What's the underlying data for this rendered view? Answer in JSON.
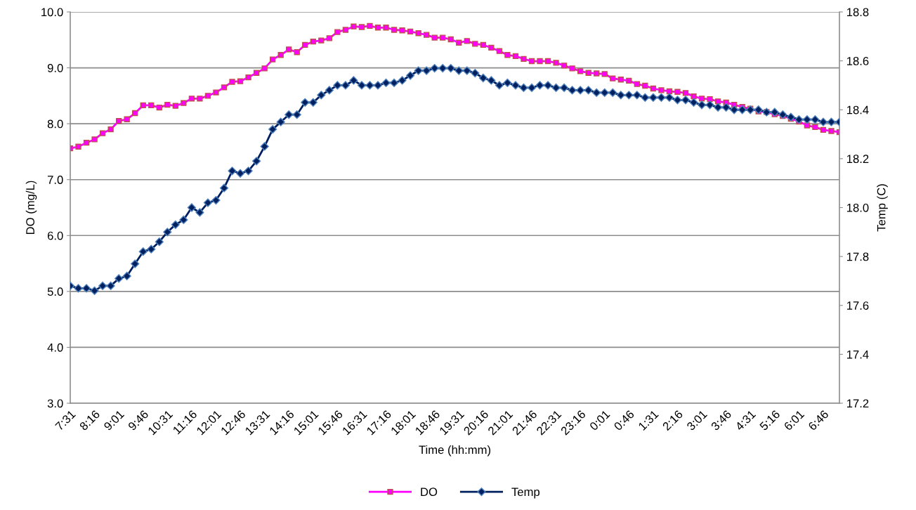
{
  "chart_data": {
    "type": "line",
    "xlabel": "Time (hh:mm)",
    "ylabel": "DO (mg/L)",
    "y2label": "Temp (C)",
    "categories": [
      "7:31",
      null,
      null,
      "8:16",
      null,
      null,
      "9:01",
      null,
      null,
      "9:46",
      null,
      null,
      "10:31",
      null,
      null,
      "11:16",
      null,
      null,
      "12:01",
      null,
      null,
      "12:46",
      null,
      null,
      "13:31",
      null,
      null,
      "14:16",
      null,
      null,
      "15:01",
      null,
      null,
      "15:46",
      null,
      null,
      "16:31",
      null,
      null,
      "17:16",
      null,
      null,
      "18:01",
      null,
      null,
      "18:46",
      null,
      null,
      "19:31",
      null,
      null,
      "20:16",
      null,
      null,
      "21:01",
      null,
      null,
      "21:46",
      null,
      null,
      "22:31",
      null,
      null,
      "23:16",
      null,
      null,
      "0:01",
      null,
      null,
      "0:46",
      null,
      null,
      "1:31",
      null,
      null,
      "2:16",
      null,
      null,
      "3:01",
      null,
      null,
      "3:46",
      null,
      null,
      "4:31",
      null,
      null,
      "5:16",
      null,
      null,
      "6:01",
      null,
      null,
      "6:46",
      null,
      null
    ],
    "series": [
      {
        "name": "DO",
        "color": "#ff00ff",
        "marker": "square",
        "values": [
          7.56,
          7.59,
          7.66,
          7.72,
          7.83,
          7.9,
          8.05,
          8.08,
          8.19,
          8.33,
          8.33,
          8.29,
          8.34,
          8.32,
          8.37,
          8.45,
          8.45,
          8.5,
          8.56,
          8.65,
          8.75,
          8.76,
          8.83,
          8.91,
          8.99,
          9.15,
          9.23,
          9.33,
          9.28,
          9.41,
          9.47,
          9.49,
          9.53,
          9.64,
          9.68,
          9.74,
          9.73,
          9.75,
          9.72,
          9.72,
          9.68,
          9.67,
          9.65,
          9.62,
          9.59,
          9.54,
          9.54,
          9.51,
          9.45,
          9.48,
          9.43,
          9.41,
          9.36,
          9.3,
          9.23,
          9.21,
          9.16,
          9.12,
          9.12,
          9.12,
          9.09,
          9.04,
          8.99,
          8.94,
          8.91,
          8.9,
          8.89,
          8.81,
          8.79,
          8.77,
          8.71,
          8.68,
          8.63,
          8.6,
          8.58,
          8.57,
          8.55,
          8.49,
          8.45,
          8.44,
          8.4,
          8.38,
          8.34,
          8.3,
          8.27,
          8.22,
          8.21,
          8.17,
          8.14,
          8.09,
          8.04,
          7.97,
          7.94,
          7.89,
          7.87,
          7.85
        ]
      },
      {
        "name": "Temp",
        "color": "#002060",
        "marker": "diamond",
        "axis": "y2",
        "values": [
          17.68,
          17.67,
          17.67,
          17.66,
          17.68,
          17.68,
          17.71,
          17.72,
          17.77,
          17.82,
          17.83,
          17.86,
          17.9,
          17.93,
          17.95,
          18.0,
          17.98,
          18.02,
          18.03,
          18.08,
          18.15,
          18.14,
          18.15,
          18.19,
          18.25,
          18.32,
          18.35,
          18.38,
          18.38,
          18.43,
          18.43,
          18.46,
          18.48,
          18.5,
          18.5,
          18.52,
          18.5,
          18.5,
          18.5,
          18.51,
          18.51,
          18.52,
          18.54,
          18.56,
          18.56,
          18.57,
          18.57,
          18.57,
          18.56,
          18.56,
          18.55,
          18.53,
          18.52,
          18.5,
          18.51,
          18.5,
          18.49,
          18.49,
          18.5,
          18.5,
          18.49,
          18.49,
          18.48,
          18.48,
          18.48,
          18.47,
          18.47,
          18.47,
          18.46,
          18.46,
          18.46,
          18.45,
          18.45,
          18.45,
          18.45,
          18.44,
          18.44,
          18.43,
          18.42,
          18.42,
          18.41,
          18.41,
          18.4,
          18.4,
          18.4,
          18.4,
          18.39,
          18.39,
          18.38,
          18.37,
          18.36,
          18.36,
          18.36,
          18.35,
          18.35,
          18.35
        ]
      }
    ],
    "ylim": [
      3,
      10
    ],
    "yticks": [
      {
        "value": 3,
        "label": "3.0"
      },
      {
        "value": 4,
        "label": "4.0"
      },
      {
        "value": 5,
        "label": "5.0"
      },
      {
        "value": 6,
        "label": "6.0"
      },
      {
        "value": 7,
        "label": "7.0"
      },
      {
        "value": 8,
        "label": "8.0"
      },
      {
        "value": 9,
        "label": "9.0"
      },
      {
        "value": 10,
        "label": "10.0"
      }
    ],
    "y2lim": [
      17.2,
      18.8
    ],
    "y2ticks": [
      {
        "value": 17.2,
        "label": "17.2"
      },
      {
        "value": 17.4,
        "label": "17.4"
      },
      {
        "value": 17.6,
        "label": "17.6"
      },
      {
        "value": 17.8,
        "label": "17.8"
      },
      {
        "value": 18.0,
        "label": "18.0"
      },
      {
        "value": 18.2,
        "label": "18.2"
      },
      {
        "value": 18.4,
        "label": "18.4"
      },
      {
        "value": 18.6,
        "label": "18.6"
      },
      {
        "value": 18.8,
        "label": "18.8"
      }
    ],
    "grid": "y",
    "legend": "bottom",
    "line_style": "solid"
  }
}
